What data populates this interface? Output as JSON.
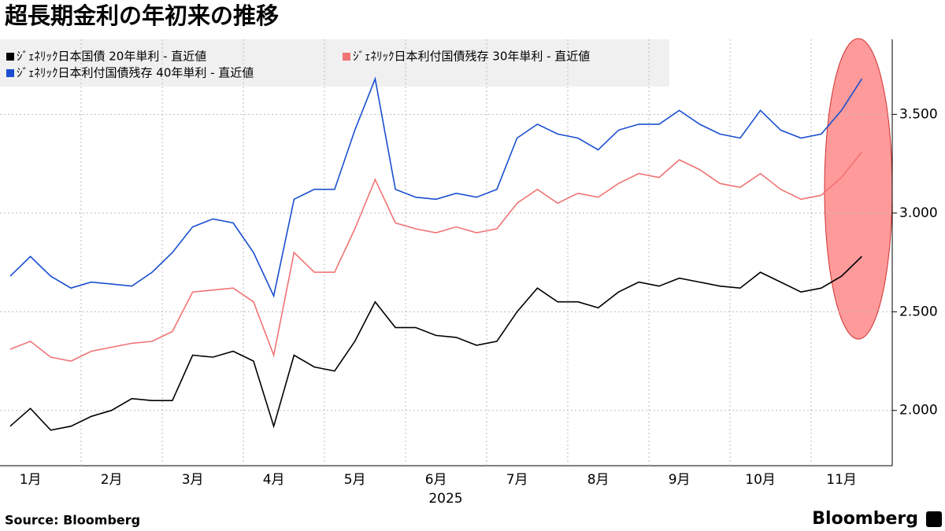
{
  "chart_data": {
    "type": "line",
    "title": "超長期金利の年初来の推移",
    "xlabel": "2025",
    "source": "Source:  Bloomberg",
    "brand": "Bloomberg",
    "categories": [
      null,
      "1月",
      null,
      null,
      null,
      "2月",
      null,
      null,
      null,
      "3月",
      null,
      null,
      null,
      "4月",
      null,
      null,
      null,
      "5月",
      null,
      null,
      null,
      "6月",
      null,
      null,
      null,
      "7月",
      null,
      null,
      null,
      "8月",
      null,
      null,
      null,
      "9月",
      null,
      null,
      null,
      "10月",
      null,
      null,
      null,
      "11月",
      null
    ],
    "series": [
      {
        "name": "ｼﾞｪﾈﾘｯｸ日本国債 20年単利  - 直近値",
        "color": "#000000",
        "values": [
          1.92,
          2.01,
          1.9,
          1.92,
          1.97,
          2.0,
          2.06,
          2.05,
          2.05,
          2.28,
          2.27,
          2.3,
          2.25,
          1.92,
          2.28,
          2.22,
          2.2,
          2.35,
          2.55,
          2.42,
          2.42,
          2.38,
          2.37,
          2.33,
          2.35,
          2.5,
          2.62,
          2.55,
          2.55,
          2.52,
          2.6,
          2.65,
          2.63,
          2.67,
          2.65,
          2.63,
          2.62,
          2.7,
          2.65,
          2.6,
          2.62,
          2.68,
          2.78
        ]
      },
      {
        "name": "ｼﾞｪﾈﾘｯｸ日本利付国債残存  30年単利  - 直近値",
        "color": "#f07474",
        "values": [
          2.31,
          2.35,
          2.27,
          2.25,
          2.3,
          2.32,
          2.34,
          2.35,
          2.4,
          2.6,
          2.61,
          2.62,
          2.55,
          2.28,
          2.8,
          2.7,
          2.7,
          2.92,
          3.17,
          2.95,
          2.92,
          2.9,
          2.93,
          2.9,
          2.92,
          3.05,
          3.12,
          3.05,
          3.1,
          3.08,
          3.15,
          3.2,
          3.18,
          3.27,
          3.22,
          3.15,
          3.13,
          3.2,
          3.12,
          3.07,
          3.09,
          3.18,
          3.31
        ]
      },
      {
        "name": "ｼﾞｪﾈﾘｯｸ日本利付国債残存  40年単利  - 直近値",
        "color": "#1a4fd0",
        "values": [
          2.68,
          2.78,
          2.68,
          2.62,
          2.65,
          2.64,
          2.63,
          2.7,
          2.8,
          2.93,
          2.97,
          2.95,
          2.8,
          2.58,
          3.07,
          3.12,
          3.12,
          3.42,
          3.68,
          3.12,
          3.08,
          3.07,
          3.1,
          3.08,
          3.12,
          3.38,
          3.45,
          3.4,
          3.38,
          3.32,
          3.42,
          3.45,
          3.45,
          3.52,
          3.45,
          3.4,
          3.38,
          3.52,
          3.42,
          3.38,
          3.4,
          3.52,
          3.68
        ]
      }
    ],
    "ylim": [
      1.72,
      3.88
    ],
    "yticks": [
      {
        "value": 2,
        "label": "2.000"
      },
      {
        "value": 2.5,
        "label": "2.500"
      },
      {
        "value": 3,
        "label": "3.000"
      },
      {
        "value": 3.5,
        "label": "3.500"
      }
    ],
    "grid": true
  }
}
